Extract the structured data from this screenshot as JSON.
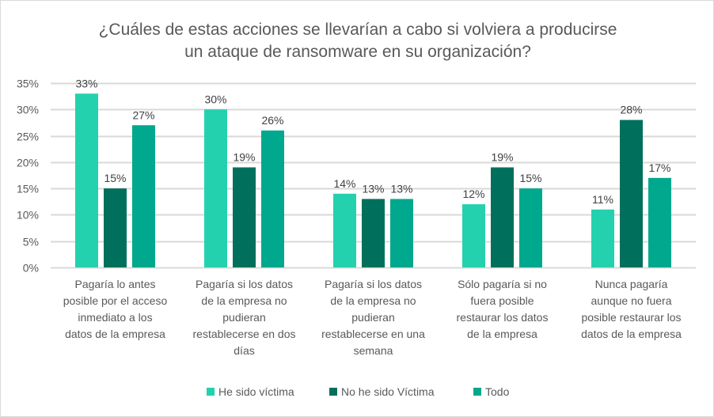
{
  "chart_data": {
    "type": "bar",
    "title": [
      "¿Cuáles de estas acciones se llevarían a cabo si volviera a producirse",
      "un ataque de ransomware en su organización?"
    ],
    "xlabel": "",
    "ylabel": "",
    "ylim": [
      0,
      35
    ],
    "yticks": [
      0,
      5,
      10,
      15,
      20,
      25,
      30,
      35
    ],
    "ytick_labels": [
      "0%",
      "5%",
      "10%",
      "15%",
      "20%",
      "25%",
      "30%",
      "35%"
    ],
    "grid": true,
    "legend_position": "bottom",
    "categories": [
      [
        "Pagaría lo antes",
        "posible por el acceso",
        "inmediato a los",
        "datos de la empresa"
      ],
      [
        "Pagaría si los datos",
        "de la empresa no",
        "pudieran",
        "restablecerse en dos",
        "días"
      ],
      [
        "Pagaría si los datos",
        "de la empresa no",
        "pudieran",
        "restablecerse en una",
        "semana"
      ],
      [
        "Sólo pagaría si no",
        "fuera posible",
        "restaurar los datos",
        "de la empresa"
      ],
      [
        "Nunca pagaría",
        "aunque no fuera",
        "posible restaurar los",
        "datos de la empresa"
      ]
    ],
    "series": [
      {
        "name": "He sido víctima",
        "color": "#24d1ae",
        "values": [
          33,
          30,
          14,
          12,
          11
        ],
        "labels": [
          "33%",
          "30%",
          "14%",
          "12%",
          "11%"
        ]
      },
      {
        "name": "No he sido Víctima",
        "color": "#00705c",
        "values": [
          15,
          19,
          13,
          19,
          28
        ],
        "labels": [
          "15%",
          "19%",
          "13%",
          "19%",
          "28%"
        ]
      },
      {
        "name": "Todo",
        "color": "#00a88d",
        "values": [
          27,
          26,
          13,
          15,
          17
        ],
        "labels": [
          "27%",
          "26%",
          "13%",
          "15%",
          "17%"
        ]
      }
    ]
  }
}
